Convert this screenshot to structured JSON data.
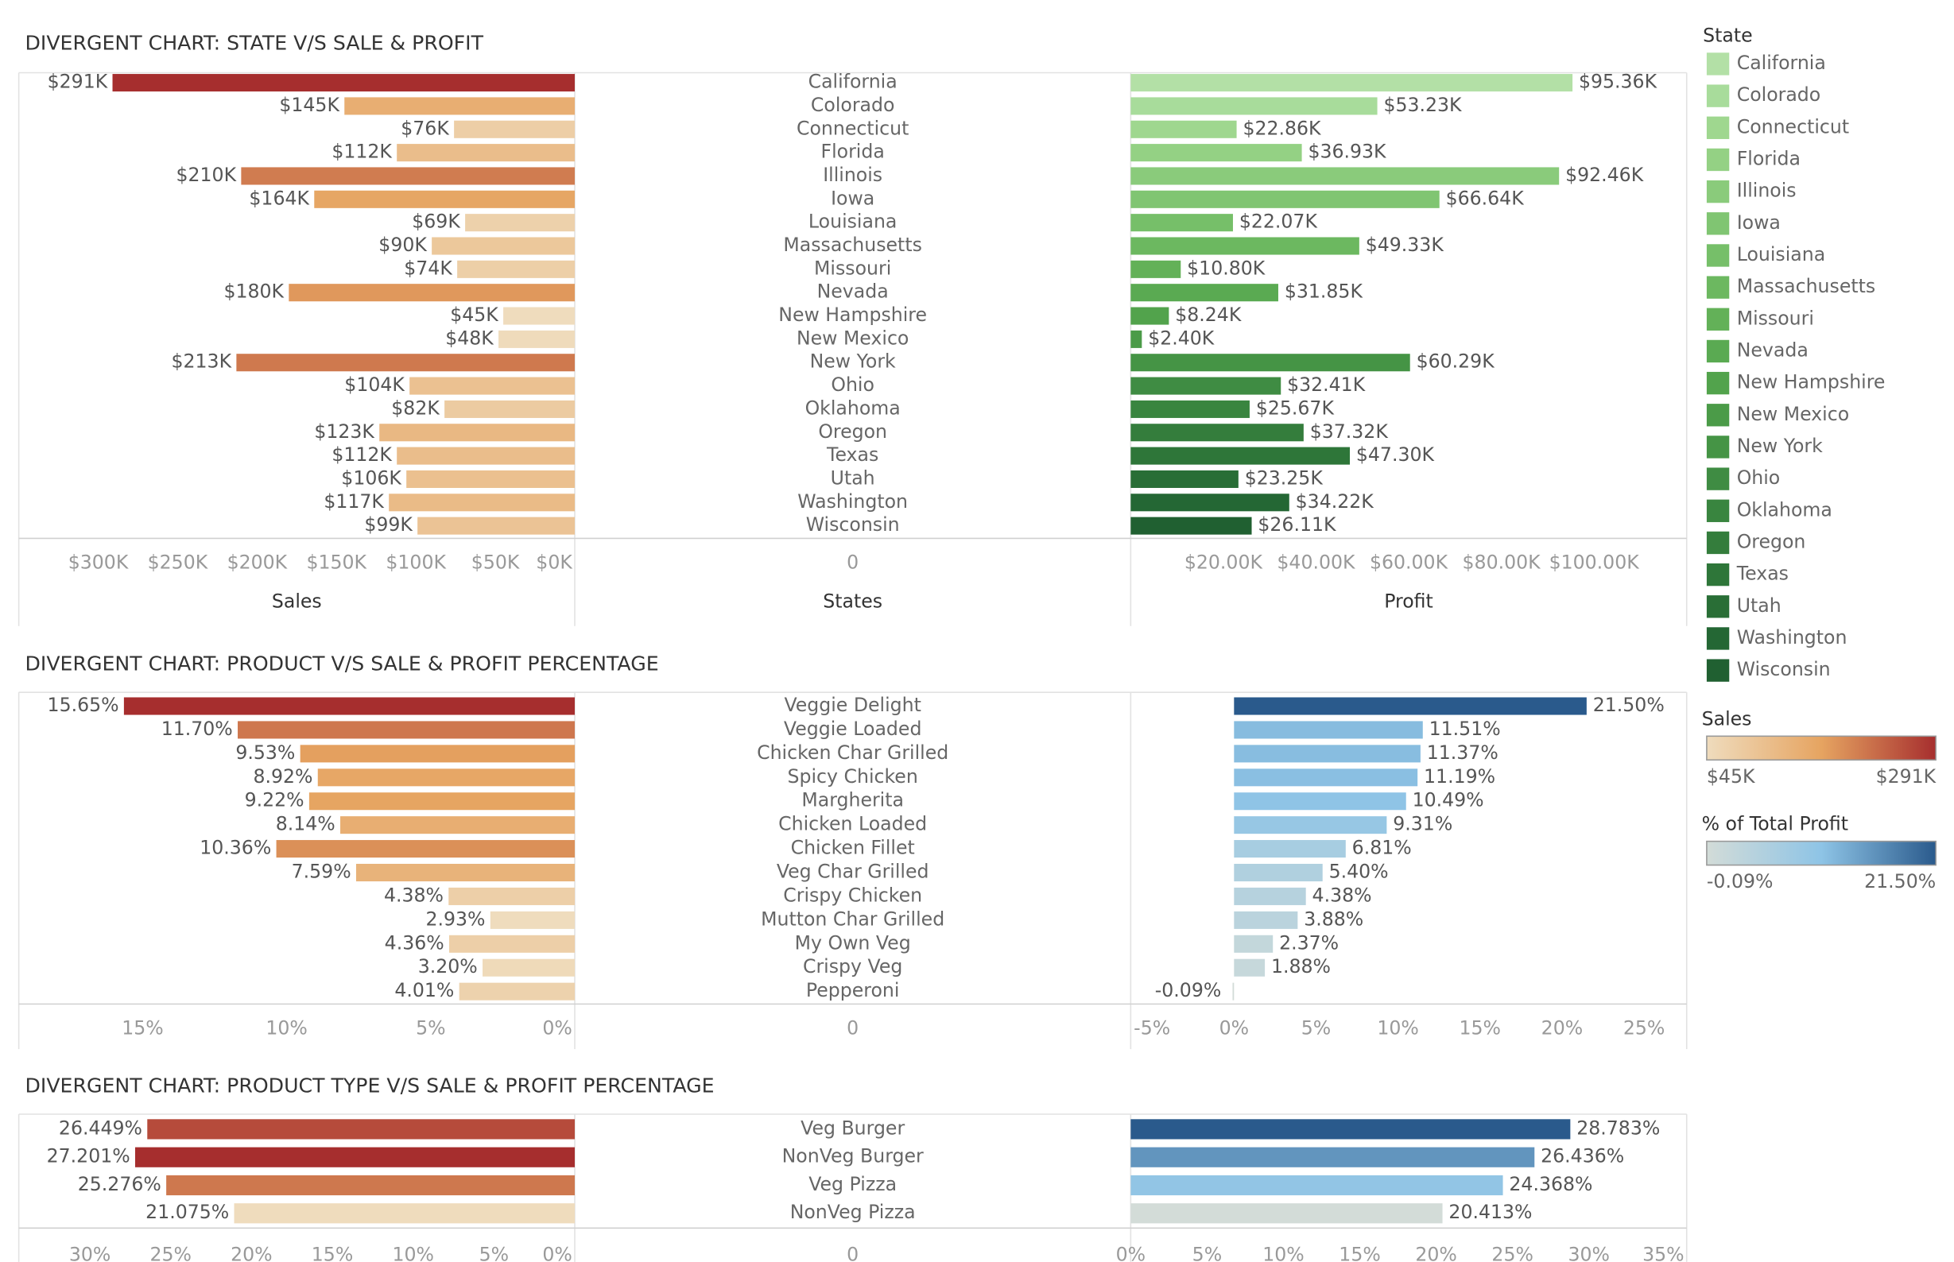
{
  "chart_data": [
    {
      "type": "divergent_bar",
      "title": "DIVERGENT CHART: STATE V/S SALE & PROFIT",
      "category_label": "States",
      "categories": [
        "California",
        "Colorado",
        "Connecticut",
        "Florida",
        "Illinois",
        "Iowa",
        "Louisiana",
        "Massachusetts",
        "Missouri",
        "Nevada",
        "New Hampshire",
        "New Mexico",
        "New York",
        "Ohio",
        "Oklahoma",
        "Oregon",
        "Texas",
        "Utah",
        "Washington",
        "Wisconsin"
      ],
      "center_ticks": [
        0
      ],
      "series": [
        {
          "name": "Sales",
          "color_scale": "sales",
          "values": [
            291000,
            145000,
            76000,
            112000,
            210000,
            164000,
            69000,
            90000,
            74000,
            180000,
            45000,
            48000,
            213000,
            104000,
            82000,
            123000,
            112000,
            106000,
            117000,
            99000
          ],
          "value_labels": [
            "$291K",
            "$145K",
            "$76K",
            "$112K",
            "$210K",
            "$164K",
            "$69K",
            "$90K",
            "$74K",
            "$180K",
            "$45K",
            "$48K",
            "$213K",
            "$104K",
            "$82K",
            "$123K",
            "$112K",
            "$106K",
            "$117K",
            "$99K"
          ],
          "xlim": [
            350000,
            0
          ],
          "xticks": [
            {
              "value": 300000,
              "label": "$300K"
            },
            {
              "value": 250000,
              "label": "$250K"
            },
            {
              "value": 200000,
              "label": "$200K"
            },
            {
              "value": 150000,
              "label": "$150K"
            },
            {
              "value": 100000,
              "label": "$100K"
            },
            {
              "value": 50000,
              "label": "$50K"
            },
            {
              "value": 0,
              "label": "$0K"
            }
          ]
        },
        {
          "name": "Profit",
          "color_scale": "state",
          "values": [
            95360,
            53230,
            22860,
            36930,
            92460,
            66640,
            22070,
            49330,
            10800,
            31850,
            8240,
            2400,
            60290,
            32410,
            25670,
            37320,
            47300,
            23250,
            34220,
            26110
          ],
          "value_labels": [
            "$95.36K",
            "$53.23K",
            "$22.86K",
            "$36.93K",
            "$92.46K",
            "$66.64K",
            "$22.07K",
            "$49.33K",
            "$10.80K",
            "$31.85K",
            "$8.24K",
            "$2.40K",
            "$60.29K",
            "$32.41K",
            "$25.67K",
            "$37.32K",
            "$47.30K",
            "$23.25K",
            "$34.22K",
            "$26.11K"
          ],
          "xlim": [
            0,
            120000
          ],
          "xticks": [
            {
              "value": 20000,
              "label": "$20.00K"
            },
            {
              "value": 40000,
              "label": "$40.00K"
            },
            {
              "value": 60000,
              "label": "$60.00K"
            },
            {
              "value": 80000,
              "label": "$80.00K"
            },
            {
              "value": 100000,
              "label": "$100.00K"
            }
          ]
        }
      ]
    },
    {
      "type": "divergent_bar",
      "title": "DIVERGENT CHART: PRODUCT V/S SALE & PROFIT PERCENTAGE",
      "categories": [
        "Veggie Delight",
        "Veggie Loaded",
        "Chicken Char Grilled",
        "Spicy Chicken",
        "Margherita",
        "Chicken Loaded",
        "Chicken Fillet",
        "Veg Char Grilled",
        "Crispy Chicken",
        "Mutton Char Grilled",
        "My Own Veg",
        "Crispy Veg",
        "Pepperoni"
      ],
      "center_ticks": [
        0
      ],
      "series": [
        {
          "color_scale": "sales",
          "values": [
            15.65,
            11.7,
            9.53,
            8.92,
            9.22,
            8.14,
            10.36,
            7.59,
            4.38,
            2.93,
            4.36,
            3.2,
            4.01
          ],
          "value_labels": [
            "15.65%",
            "11.70%",
            "9.53%",
            "8.92%",
            "9.22%",
            "8.14%",
            "10.36%",
            "7.59%",
            "4.38%",
            "2.93%",
            "4.36%",
            "3.20%",
            "4.01%"
          ],
          "xlim": [
            19.3,
            0
          ],
          "xticks": [
            {
              "value": 15,
              "label": "15%"
            },
            {
              "value": 10,
              "label": "10%"
            },
            {
              "value": 5,
              "label": "5%"
            },
            {
              "value": 0,
              "label": "0%"
            }
          ]
        },
        {
          "color_scale": "profit",
          "values": [
            21.5,
            11.51,
            11.37,
            11.19,
            10.49,
            9.31,
            6.81,
            5.4,
            4.38,
            3.88,
            2.37,
            1.88,
            -0.09
          ],
          "value_labels": [
            "21.50%",
            "11.51%",
            "11.37%",
            "11.19%",
            "10.49%",
            "9.31%",
            "6.81%",
            "5.40%",
            "4.38%",
            "3.88%",
            "2.37%",
            "1.88%",
            "-0.09%"
          ],
          "xlim": [
            -6.3,
            27.6
          ],
          "xticks": [
            {
              "value": -5,
              "label": "-5%"
            },
            {
              "value": 0,
              "label": "0%"
            },
            {
              "value": 5,
              "label": "5%"
            },
            {
              "value": 10,
              "label": "10%"
            },
            {
              "value": 15,
              "label": "15%"
            },
            {
              "value": 20,
              "label": "20%"
            },
            {
              "value": 25,
              "label": "25%"
            }
          ]
        }
      ]
    },
    {
      "type": "divergent_bar",
      "title": "DIVERGENT CHART: PRODUCT TYPE V/S SALE & PROFIT PERCENTAGE",
      "categories": [
        "Veg Burger",
        "NonVeg Burger",
        "Veg Pizza",
        "NonVeg Pizza"
      ],
      "center_ticks": [
        0
      ],
      "series": [
        {
          "color_scale": "sales",
          "values": [
            26.449,
            27.201,
            25.276,
            21.075
          ],
          "value_labels": [
            "26.449%",
            "27.201%",
            "25.276%",
            "21.075%"
          ],
          "xlim": [
            34.4,
            0
          ],
          "xticks": [
            {
              "value": 30,
              "label": "30%"
            },
            {
              "value": 25,
              "label": "25%"
            },
            {
              "value": 20,
              "label": "20%"
            },
            {
              "value": 15,
              "label": "15%"
            },
            {
              "value": 10,
              "label": "10%"
            },
            {
              "value": 5,
              "label": "5%"
            },
            {
              "value": 0,
              "label": "0%"
            }
          ]
        },
        {
          "color_scale": "profit",
          "values": [
            28.783,
            26.436,
            24.368,
            20.413
          ],
          "value_labels": [
            "28.783%",
            "26.436%",
            "24.368%",
            "20.413%"
          ],
          "xlim": [
            0,
            36.4
          ],
          "xticks": [
            {
              "value": 0,
              "label": "0%"
            },
            {
              "value": 5,
              "label": "5%"
            },
            {
              "value": 10,
              "label": "10%"
            },
            {
              "value": 15,
              "label": "15%"
            },
            {
              "value": 20,
              "label": "20%"
            },
            {
              "value": 25,
              "label": "25%"
            },
            {
              "value": 30,
              "label": "30%"
            },
            {
              "value": 35,
              "label": "35%"
            }
          ]
        }
      ]
    }
  ],
  "legends": {
    "state": {
      "title": "State",
      "items": [
        "California",
        "Colorado",
        "Connecticut",
        "Florida",
        "Illinois",
        "Iowa",
        "Louisiana",
        "Massachusetts",
        "Missouri",
        "Nevada",
        "New Hampshire",
        "New Mexico",
        "New York",
        "Ohio",
        "Oklahoma",
        "Oregon",
        "Texas",
        "Utah",
        "Washington",
        "Wisconsin"
      ],
      "colors": [
        "#b3e0a6",
        "#a8dc9b",
        "#9fd78f",
        "#94d184",
        "#8acb7b",
        "#80c572",
        "#76bf69",
        "#6cb860",
        "#63b158",
        "#5aaa52",
        "#52a34c",
        "#4b9b48",
        "#459445",
        "#3f8c43",
        "#39853f",
        "#347d3c",
        "#2e7639",
        "#296e36",
        "#246734",
        "#206031"
      ]
    },
    "sales": {
      "title": "Sales",
      "range": [
        {
          "value": 45000,
          "label": "$45K"
        },
        {
          "value": 291000,
          "label": "$291K"
        }
      ],
      "colors": [
        "#efdcbd",
        "#e6a461",
        "#a62e2e"
      ]
    },
    "profit": {
      "title": "% of Total Profit",
      "range": [
        {
          "value": -0.09,
          "label": "-0.09%"
        },
        {
          "value": 21.5,
          "label": "21.50%"
        }
      ],
      "colors": [
        "#d3dcd8",
        "#8ec4e6",
        "#2a5a8c"
      ]
    }
  }
}
